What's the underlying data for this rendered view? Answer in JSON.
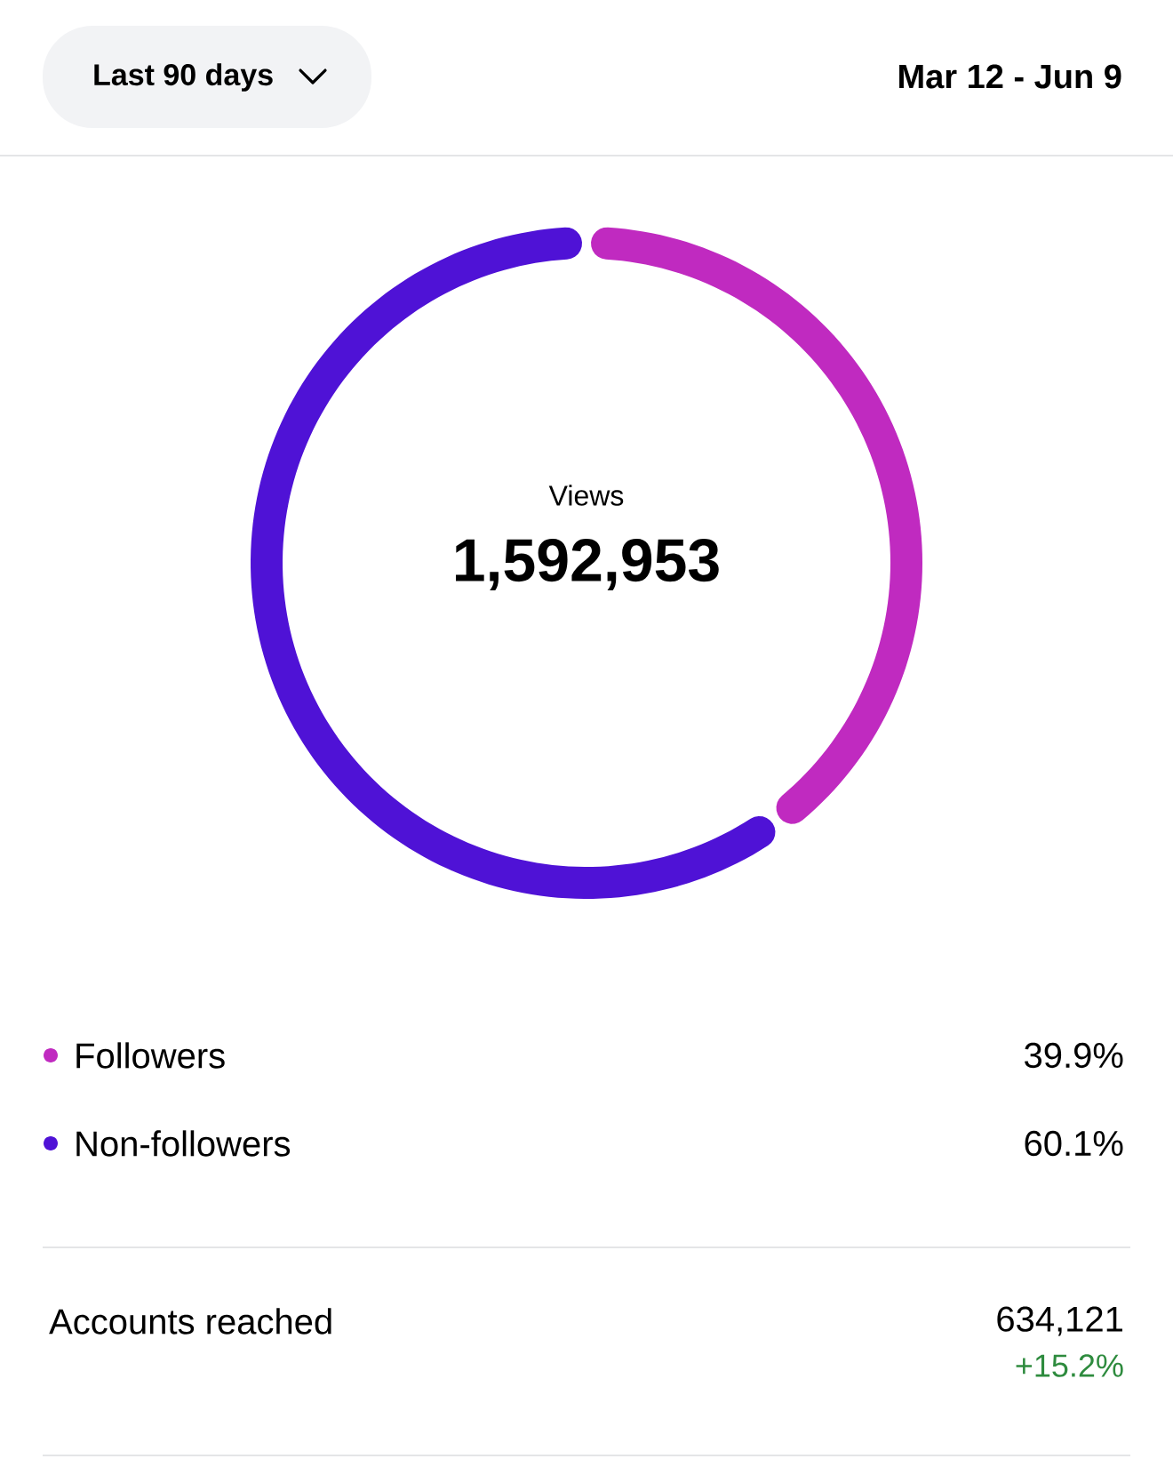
{
  "chart_data": {
    "type": "donut",
    "categories": [
      "Followers",
      "Non-followers"
    ],
    "values": [
      39.9,
      60.1
    ],
    "colors": [
      "#c02ac0",
      "#4f12d6"
    ],
    "value_labels": [
      "39.9%",
      "60.1%"
    ],
    "legend": "bottom",
    "annotations": [
      "Last 90 days",
      "Mar 12 - Jun 9",
      "Views",
      "1,592,953",
      "Accounts reached",
      "634,121",
      "+15.2%"
    ]
  }
}
